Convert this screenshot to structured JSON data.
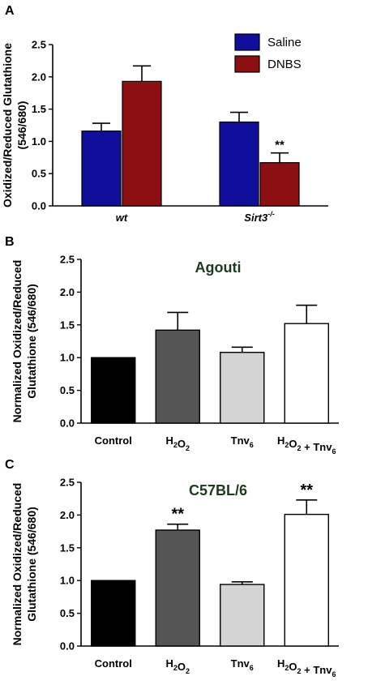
{
  "chart_data": [
    {
      "panel": "A",
      "type": "bar",
      "categories": [
        "wt",
        "Sirt3-/-"
      ],
      "series": [
        {
          "name": "Saline",
          "values": [
            1.16,
            1.3
          ],
          "errors": [
            0.12,
            0.15
          ],
          "color": "#0f0f9b"
        },
        {
          "name": "DNBS",
          "values": [
            1.93,
            0.67
          ],
          "errors": [
            0.24,
            0.15
          ],
          "color": "#8c0f12"
        }
      ],
      "significance": [
        {
          "category": 1,
          "series": 1,
          "label": "**"
        }
      ],
      "title": "",
      "ylabel": "Oxidized/Reduced Glutathione (546/680)",
      "ylim": [
        0,
        2.5
      ],
      "yticks": [
        "0.0",
        "0.5",
        "1.0",
        "1.5",
        "2.0",
        "2.5"
      ],
      "legend": "top-right",
      "grid": false
    },
    {
      "panel": "B",
      "type": "bar",
      "title": "Agouti",
      "categories": [
        "Control",
        "H2O2",
        "Tnv6",
        "H2O2 + Tnv6"
      ],
      "values": [
        1.0,
        1.42,
        1.08,
        1.52
      ],
      "errors": [
        0,
        0.27,
        0.08,
        0.28
      ],
      "colors": [
        "#000000",
        "#555555",
        "#d4d4d4",
        "#ffffff"
      ],
      "significance": [],
      "ylabel": "Normalized Oxidized/Reduced Glutathione (546/680)",
      "ylim": [
        0,
        2.5
      ],
      "yticks": [
        "0.0",
        "0.5",
        "1.0",
        "1.5",
        "2.0",
        "2.5"
      ],
      "grid": false
    },
    {
      "panel": "C",
      "type": "bar",
      "title": "C57BL/6",
      "categories": [
        "Control",
        "H2O2",
        "Tnv6",
        "H2O2 + Tnv6"
      ],
      "values": [
        1.0,
        1.77,
        0.94,
        2.01
      ],
      "errors": [
        0,
        0.09,
        0.04,
        0.22
      ],
      "colors": [
        "#000000",
        "#555555",
        "#d4d4d4",
        "#ffffff"
      ],
      "significance": [
        {
          "category": 1,
          "label": "**"
        },
        {
          "category": 3,
          "label": "**"
        }
      ],
      "ylabel": "Normalized Oxidized/Reduced Glutathione (546/680)",
      "ylim": [
        0,
        2.5
      ],
      "yticks": [
        "0.0",
        "0.5",
        "1.0",
        "1.5",
        "2.0",
        "2.5"
      ],
      "grid": false
    }
  ]
}
